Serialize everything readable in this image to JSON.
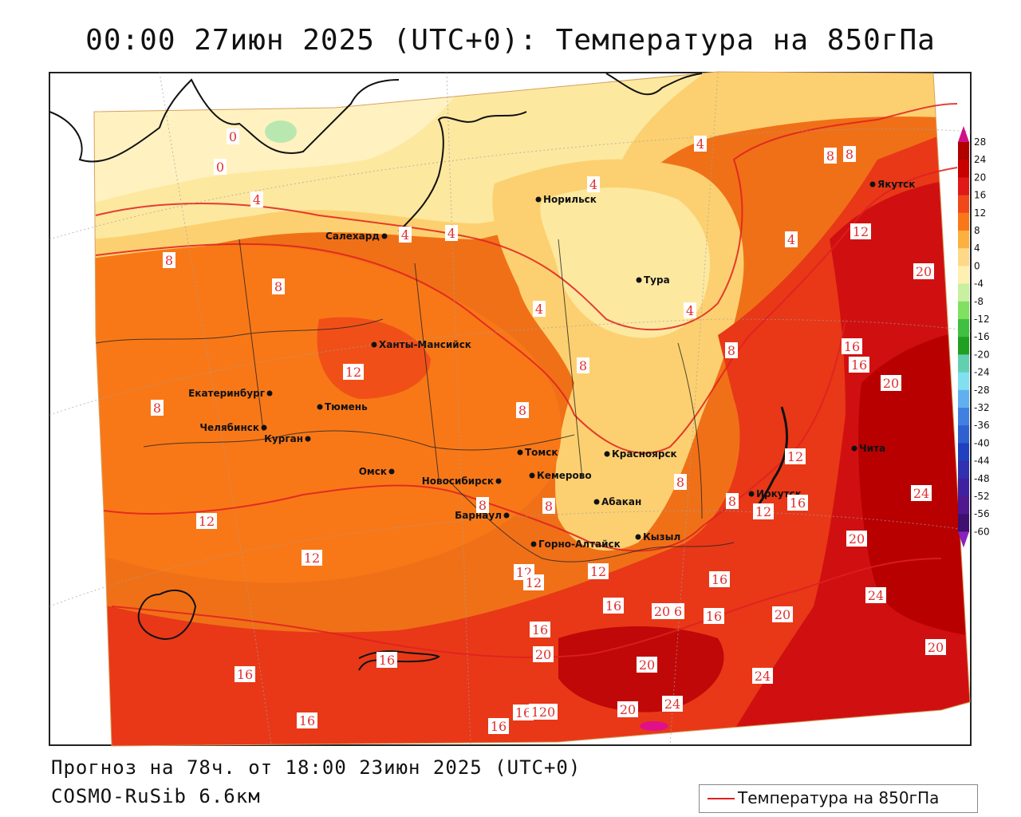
{
  "title": "00:00 27июн 2025 (UTC+0): Температура на 850гПа",
  "footer": {
    "forecast": "Прогноз на 78ч. от 18:00 23июн 2025 (UTC+0)",
    "model": "COSMO-RuSib 6.6км"
  },
  "legend": {
    "label": "Температура на 850гПа",
    "line_color": "#e02020"
  },
  "colorbar": {
    "ticks": [
      "28",
      "24",
      "20",
      "16",
      "12",
      "8",
      "4",
      "0",
      "-4",
      "-8",
      "-12",
      "-16",
      "-20",
      "-24",
      "-28",
      "-32",
      "-36",
      "-40",
      "-44",
      "-48",
      "-52",
      "-56",
      "-60"
    ],
    "colors": [
      "#b00000",
      "#c80000",
      "#e01818",
      "#f04818",
      "#f87818",
      "#fcb040",
      "#fcd888",
      "#fff0b0",
      "#c8f0a0",
      "#80e060",
      "#40c040",
      "#20a020",
      "#60d0b0",
      "#80e0f0",
      "#60b0f0",
      "#4080e0",
      "#3060d0",
      "#2040c0",
      "#3030b0",
      "#4020a0",
      "#501890",
      "#401070"
    ],
    "top_arrow_color": "#d0108a",
    "bottom_arrow_color": "#8a20c0"
  },
  "cities": [
    {
      "name": "Норильск"
    },
    {
      "name": "Салехард"
    },
    {
      "name": "Тура"
    },
    {
      "name": "Якутск"
    },
    {
      "name": "Ханты-Мансийск"
    },
    {
      "name": "Екатеринбург"
    },
    {
      "name": "Тюмень"
    },
    {
      "name": "Челябинск"
    },
    {
      "name": "Курган"
    },
    {
      "name": "Омск"
    },
    {
      "name": "Новосибирск"
    },
    {
      "name": "Томск"
    },
    {
      "name": "Кемерово"
    },
    {
      "name": "Красноярск"
    },
    {
      "name": "Барнаул"
    },
    {
      "name": "Абакан"
    },
    {
      "name": "Горно-Алтайск"
    },
    {
      "name": "Кызыл"
    },
    {
      "name": "Иркутск"
    },
    {
      "name": "Чита"
    }
  ],
  "isotherm_labels": [
    "0",
    "0",
    "4",
    "4",
    "4",
    "4",
    "4",
    "4",
    "4",
    "4",
    "8",
    "8",
    "8",
    "8",
    "8",
    "8",
    "8",
    "8",
    "8",
    "8",
    "8",
    "8",
    "12",
    "12",
    "12",
    "12",
    "12",
    "12",
    "12",
    "12",
    "12",
    "12",
    "16",
    "16",
    "16",
    "16",
    "16",
    "16",
    "16",
    "16",
    "16",
    "16",
    "16",
    "16",
    "16",
    "16",
    "16",
    "20",
    "20",
    "20",
    "20",
    "20",
    "20",
    "20",
    "20",
    "20",
    "20",
    "24",
    "24",
    "24",
    "24"
  ]
}
